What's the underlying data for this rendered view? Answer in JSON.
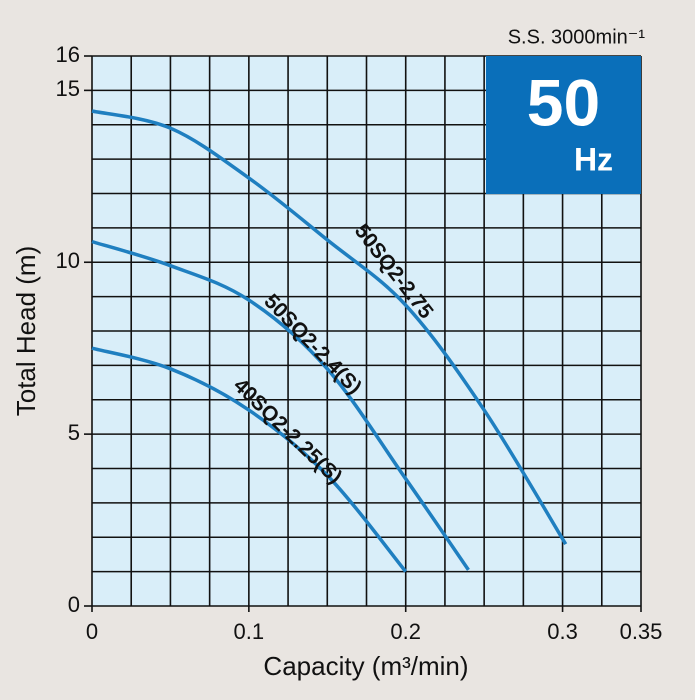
{
  "chart_data": {
    "type": "line",
    "subtitle": "S.S. 3000min⁻¹",
    "badge": {
      "value_text": "50",
      "unit": "Hz",
      "color": "#0a6fba"
    },
    "x_label": "Capacity (m³/min)",
    "y_label": "Total Head (m)",
    "xlim": [
      0,
      0.35
    ],
    "ylim": [
      0,
      16
    ],
    "xticks": [
      0,
      0.1,
      0.2,
      0.3,
      0.35
    ],
    "yticks": [
      0,
      5,
      10,
      15,
      16
    ],
    "grid": {
      "x_step": 0.025,
      "y_step": 1
    },
    "series": [
      {
        "name": "50SQ2-2.75",
        "color": "#1f7fc0",
        "x": [
          0,
          0.05,
          0.1,
          0.15,
          0.2,
          0.25,
          0.302
        ],
        "values": [
          14.4,
          13.9,
          12.45,
          10.65,
          8.75,
          5.7,
          1.8
        ]
      },
      {
        "name": "50SQ2-2.4(S)",
        "color": "#1f7fc0",
        "x": [
          0,
          0.05,
          0.1,
          0.15,
          0.2,
          0.24
        ],
        "values": [
          10.6,
          9.9,
          8.9,
          6.9,
          3.7,
          1.05
        ]
      },
      {
        "name": "40SQ2-2.25(S)",
        "color": "#1f7fc0",
        "x": [
          0,
          0.05,
          0.1,
          0.15,
          0.2
        ],
        "values": [
          7.5,
          6.9,
          5.7,
          3.8,
          1.0
        ]
      }
    ]
  }
}
